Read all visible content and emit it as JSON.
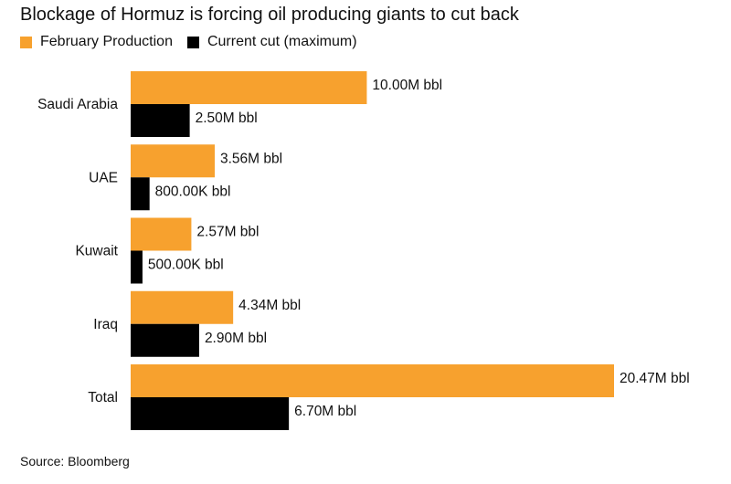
{
  "chart_data": {
    "type": "bar",
    "orientation": "horizontal",
    "title": "Blockage of Hormuz is forcing oil producing giants to cut back",
    "categories": [
      "Saudi Arabia",
      "UAE",
      "Kuwait",
      "Iraq",
      "Total"
    ],
    "series": [
      {
        "name": "February Production",
        "color": "#F7A12E",
        "values": [
          10.0,
          3.56,
          2.57,
          4.34,
          20.47
        ],
        "labels": [
          "10.00M bbl",
          "3.56M bbl",
          "2.57M bbl",
          "4.34M bbl",
          "20.47M bbl"
        ]
      },
      {
        "name": "Current cut (maximum)",
        "color": "#000000",
        "values": [
          2.5,
          0.8,
          0.5,
          2.9,
          6.7
        ],
        "labels": [
          "2.50M bbl",
          "800.00K bbl",
          "500.00K bbl",
          "2.90M bbl",
          "6.70M bbl"
        ]
      }
    ],
    "xlim": [
      0,
      20.47
    ],
    "grid": false,
    "legend_position": "top-left",
    "source": "Source: Bloomberg"
  }
}
